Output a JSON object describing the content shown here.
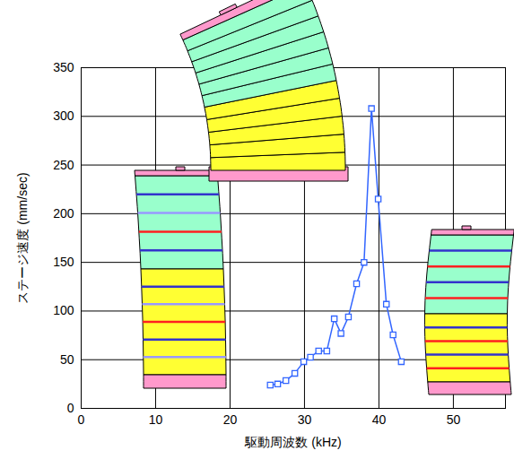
{
  "chart_data": {
    "type": "line",
    "xlabel": "駆動周波数 (kHz)",
    "ylabel": "ステージ速度 (mm/sec)",
    "x": [
      25.4,
      26.4,
      27.5,
      28.7,
      29.9,
      30.8,
      31.9,
      33.0,
      34.0,
      34.9,
      35.9,
      37.0,
      38.0,
      39.0,
      39.9,
      41.0,
      41.9,
      43.0
    ],
    "values": [
      24,
      25,
      28.5,
      36,
      48,
      52.5,
      59,
      59,
      92,
      77,
      94,
      128,
      150,
      308,
      215,
      107,
      75.5,
      48
    ],
    "color": "#3366ff",
    "marker": "square",
    "xlim": [
      0,
      57
    ],
    "xticks": [
      0,
      10,
      20,
      30,
      40,
      50
    ],
    "ylim": [
      0,
      350
    ],
    "yticks": [
      0,
      50,
      100,
      150,
      200,
      250,
      300,
      350
    ],
    "grid": true
  }
}
